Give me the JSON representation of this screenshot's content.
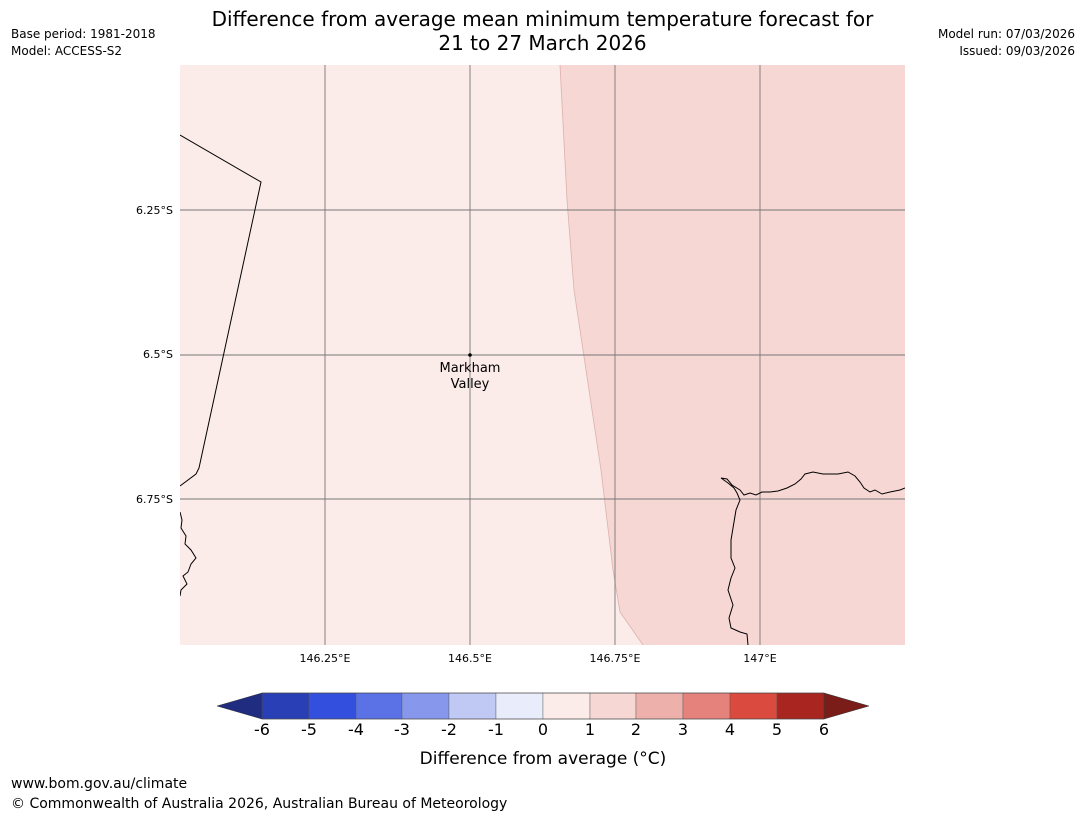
{
  "header": {
    "title_line1": "Difference from average mean minimum temperature forecast for",
    "title_line2": "21 to 27 March 2026",
    "base_period": "Base period: 1981-2018",
    "model": "Model: ACCESS-S2",
    "model_run": "Model run: 07/03/2026",
    "issued": "Issued: 09/03/2026"
  },
  "map": {
    "lat_labels": [
      "6.25°S",
      "6.5°S",
      "6.75°S"
    ],
    "lon_labels": [
      "146.25°E",
      "146.5°E",
      "146.75°E",
      "147°E"
    ],
    "place": {
      "name_line1": "Markham",
      "name_line2": "Valley"
    },
    "colors": {
      "band_0_1": "#fbebe9",
      "band_1_2": "#f6d7d4",
      "coastline": "#000000",
      "gridline": "#777777"
    }
  },
  "colorbar": {
    "title": "Difference from average (°C)",
    "ticks": [
      "-6",
      "-5",
      "-4",
      "-3",
      "-2",
      "-1",
      "0",
      "1",
      "2",
      "3",
      "4",
      "5",
      "6"
    ],
    "colors": [
      "#1f2c80",
      "#283fb5",
      "#3250dd",
      "#5a72e6",
      "#8798ec",
      "#c0c8f4",
      "#e9ecfb",
      "#fbebe9",
      "#f6d7d4",
      "#eeb0ab",
      "#e5827c",
      "#da4a3e",
      "#a8261f",
      "#7a1c18"
    ]
  },
  "footer": {
    "url": "www.bom.gov.au/climate",
    "copyright": "© Commonwealth of Australia 2026, Australian Bureau of Meteorology"
  }
}
